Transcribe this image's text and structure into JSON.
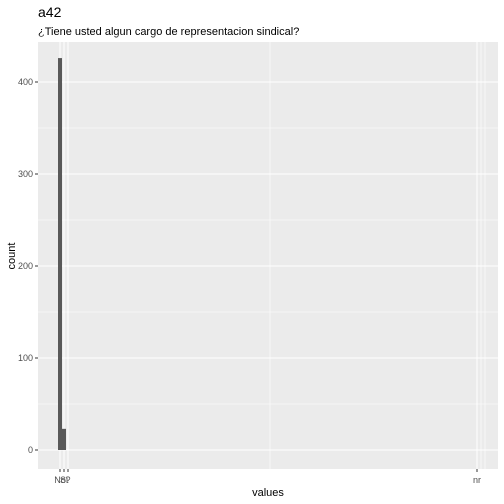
{
  "chart_data": {
    "type": "bar",
    "title": "a42",
    "subtitle": "¿Tiene usted algun cargo de representacion sindical?",
    "xlabel": "values",
    "ylabel": "count",
    "categories": [
      "No",
      "Si",
      "?",
      "nr"
    ],
    "values": [
      426,
      23,
      0,
      0
    ],
    "ylim": [
      0,
      426
    ],
    "yticks": [
      0,
      100,
      200,
      300,
      400
    ],
    "xtick_labels": [
      "No",
      "Si",
      "?",
      "nr"
    ],
    "grid": true,
    "colors": {
      "panel": "#ebebeb",
      "grid_major": "#ffffff",
      "bar": "#595959",
      "tick_text": "#4d4d4d"
    }
  }
}
